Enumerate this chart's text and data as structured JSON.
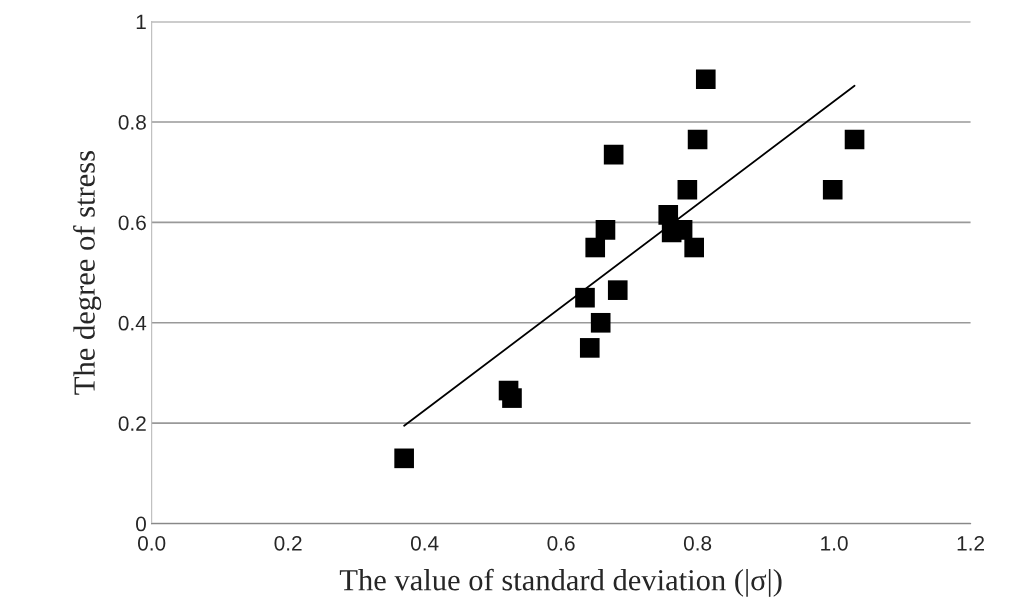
{
  "chart_data": {
    "type": "scatter",
    "xlabel": "The value of standard deviation (|σ|)",
    "ylabel": "The degree of stress",
    "xlim": [
      0,
      1.2
    ],
    "ylim": [
      0,
      1
    ],
    "xticks": [
      {
        "value": 0,
        "label": "0.0"
      },
      {
        "value": 0.2,
        "label": "0.2"
      },
      {
        "value": 0.4,
        "label": "0.4"
      },
      {
        "value": 0.6,
        "label": "0.6"
      },
      {
        "value": 0.8,
        "label": "0.8"
      },
      {
        "value": 1.0,
        "label": "1.0"
      },
      {
        "value": 1.2,
        "label": "1.2"
      }
    ],
    "yticks": [
      0,
      0.2,
      0.4,
      0.6,
      0.8,
      1
    ],
    "grid": "y",
    "series": [
      {
        "marker": "square",
        "color": "#000000",
        "x": [
          0.37,
          0.523,
          0.528,
          0.635,
          0.642,
          0.65,
          0.658,
          0.665,
          0.677,
          0.683,
          0.757,
          0.762,
          0.778,
          0.785,
          0.795,
          0.8,
          0.812,
          0.998,
          1.03
        ],
        "values": [
          0.13,
          0.265,
          0.25,
          0.45,
          0.35,
          0.55,
          0.4,
          0.585,
          0.735,
          0.465,
          0.615,
          0.58,
          0.585,
          0.665,
          0.55,
          0.765,
          0.885,
          0.665,
          0.765
        ]
      },
      {
        "type": "line",
        "color": "#000000",
        "x": [
          0.37,
          1.03
        ],
        "values": [
          0.195,
          0.872
        ]
      }
    ]
  }
}
